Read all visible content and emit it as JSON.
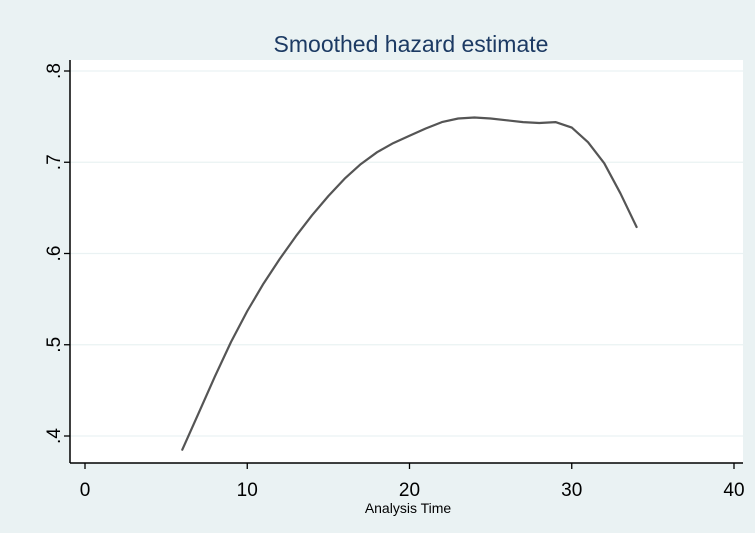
{
  "chart_data": {
    "type": "line",
    "title": "Smoothed hazard estimate",
    "xlabel": "Analysis Time",
    "ylabel": "",
    "xlim": [
      0,
      40
    ],
    "ylim": [
      0.385,
      0.81
    ],
    "x_ticks": [
      0,
      10,
      20,
      30,
      40
    ],
    "x_tick_labels": [
      "0",
      "10",
      "20",
      "30",
      "40"
    ],
    "y_ticks": [
      0.4,
      0.5,
      0.6,
      0.7,
      0.8
    ],
    "y_tick_labels": [
      ".4",
      ".5",
      ".6",
      ".7",
      ".8"
    ],
    "grid": true,
    "series": [
      {
        "color": "#555555",
        "x": [
          6,
          7,
          8,
          9,
          10,
          11,
          12,
          13,
          14,
          15,
          16,
          17,
          18,
          19,
          20,
          21,
          22,
          23,
          24,
          25,
          26,
          27,
          28,
          29,
          30,
          31,
          32,
          33,
          34
        ],
        "y": [
          0.385,
          0.425,
          0.465,
          0.503,
          0.537,
          0.567,
          0.594,
          0.619,
          0.642,
          0.663,
          0.682,
          0.698,
          0.711,
          0.721,
          0.729,
          0.737,
          0.744,
          0.748,
          0.749,
          0.748,
          0.746,
          0.744,
          0.743,
          0.744,
          0.738,
          0.722,
          0.699,
          0.666,
          0.629
        ]
      }
    ]
  },
  "colors": {
    "outer_background": "#eaf2f3",
    "plot_background": "#ffffff",
    "gridline": "#eaf2f3",
    "axis": "#000000",
    "title": "#1c3a63"
  }
}
